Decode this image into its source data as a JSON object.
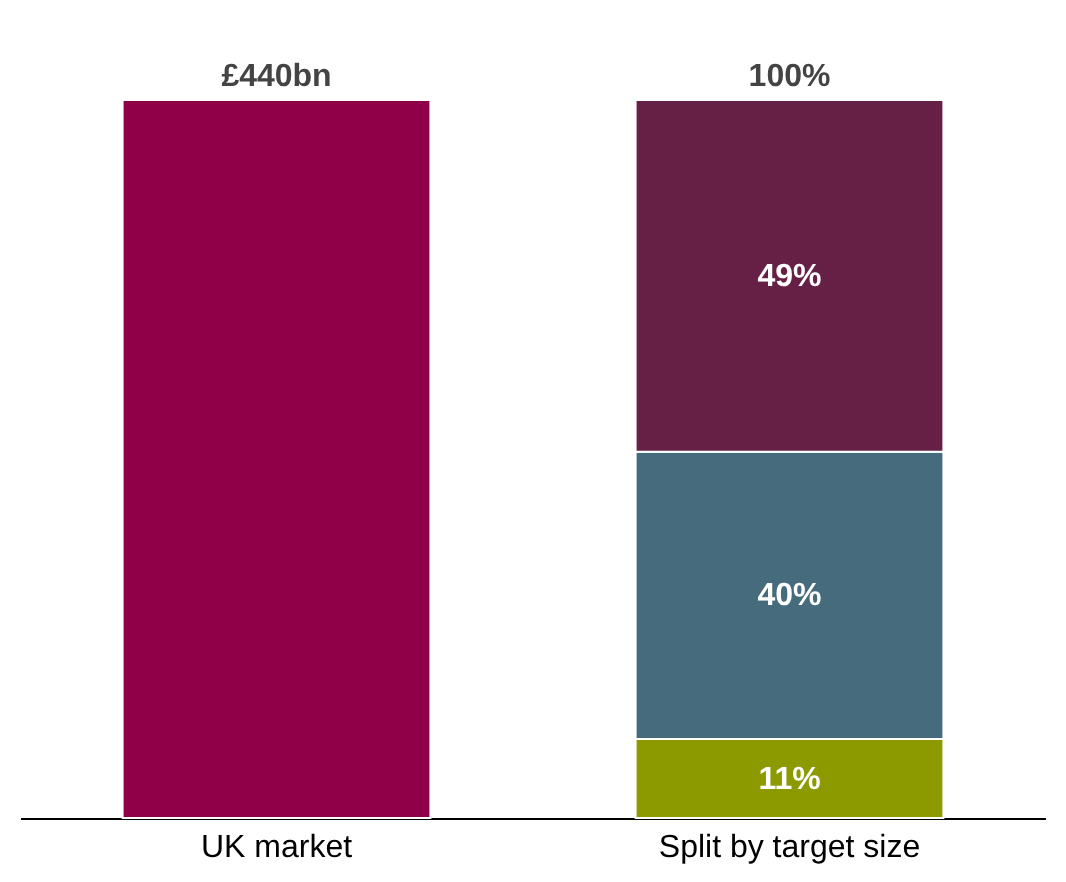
{
  "chart_data": {
    "type": "bar",
    "stacked": true,
    "categories": [
      "UK market",
      "Split by target size"
    ],
    "ylim": [
      0,
      100
    ],
    "series": [
      {
        "color": "#900048",
        "values": [
          100,
          null
        ]
      },
      {
        "color": "#8c9a00",
        "values": [
          null,
          11
        ],
        "value_labels": [
          null,
          "11%"
        ]
      },
      {
        "color": "#466b7c",
        "values": [
          null,
          40
        ],
        "value_labels": [
          null,
          "40%"
        ]
      },
      {
        "color": "#662045",
        "values": [
          null,
          49
        ],
        "value_labels": [
          null,
          "49%"
        ]
      }
    ],
    "totals": [
      null,
      "100%"
    ],
    "annotations": [
      {
        "text": "£440bn",
        "x": "UK market",
        "y": 100
      }
    ]
  }
}
